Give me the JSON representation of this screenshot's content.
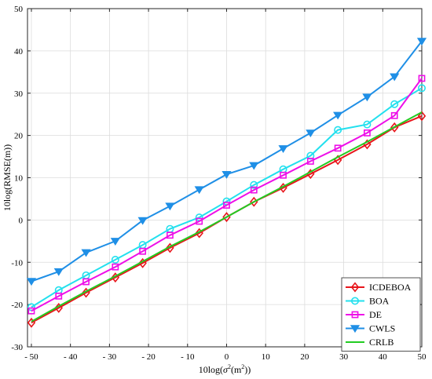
{
  "chart_data": {
    "type": "line",
    "title": "",
    "xlabel": "10log(σ²(m²))",
    "xlabel_parts": {
      "pre": "10log(",
      "sigma": "σ",
      "sup": "2",
      "mid": "(m",
      "sup2": "2",
      "post": "))"
    },
    "ylabel": "10log(RMSE(m))",
    "xlim": [
      -51,
      50
    ],
    "ylim": [
      -30,
      50
    ],
    "xticks": [
      -50,
      -40,
      -30,
      -20,
      -10,
      0,
      10,
      20,
      30,
      40,
      50
    ],
    "xtick_labels": [
      "- 50",
      "- 40",
      "- 30",
      "- 20",
      "- 10",
      "0",
      "10",
      "20",
      "30",
      "40",
      "50"
    ],
    "yticks": [
      -30,
      -20,
      -10,
      0,
      10,
      20,
      30,
      40,
      50
    ],
    "ytick_labels": [
      "-30",
      "-20",
      "-10",
      "0",
      "10",
      "20",
      "30",
      "40",
      "50"
    ],
    "grid": true,
    "legend_position": "bottom-right",
    "x": [
      -50,
      -43,
      -36,
      -28.5,
      -21.5,
      -14.5,
      -7,
      0,
      7,
      14.5,
      21.5,
      28.5,
      36,
      43,
      50
    ],
    "series": [
      {
        "name": "ICDEBOA",
        "color": "#e8151b",
        "marker": "diamond",
        "values": [
          -24.3,
          -20.8,
          -17.2,
          -13.6,
          -10.2,
          -6.6,
          -3.1,
          0.7,
          4.3,
          7.6,
          10.9,
          14.2,
          17.9,
          21.9,
          24.6
        ]
      },
      {
        "name": "BOA",
        "color": "#23e0ee",
        "marker": "circle",
        "values": [
          -20.6,
          -16.6,
          -13.1,
          -9.4,
          -5.9,
          -2.1,
          0.6,
          4.4,
          8.3,
          12.0,
          15.2,
          21.3,
          22.6,
          27.4,
          31.2
        ]
      },
      {
        "name": "DE",
        "color": "#ee0fe8",
        "marker": "square",
        "values": [
          -21.5,
          -18.0,
          -14.6,
          -11.1,
          -7.4,
          -3.6,
          -0.3,
          3.5,
          7.1,
          10.6,
          13.9,
          17.0,
          20.6,
          24.7,
          33.5
        ]
      },
      {
        "name": "CWLS",
        "color": "#1f8fe6",
        "marker": "triangle-down",
        "values": [
          -14.5,
          -12.2,
          -7.7,
          -5.0,
          -0.1,
          3.3,
          7.2,
          10.8,
          12.9,
          16.9,
          20.6,
          24.8,
          29.1,
          33.9,
          42.3
        ]
      },
      {
        "name": "CRLB",
        "color": "#22cc22",
        "marker": "none",
        "values": [
          -24.0,
          -20.4,
          -16.9,
          -13.3,
          -9.8,
          -6.3,
          -2.8,
          0.7,
          4.3,
          7.9,
          11.4,
          14.9,
          18.5,
          22.0,
          25.5
        ]
      }
    ]
  }
}
